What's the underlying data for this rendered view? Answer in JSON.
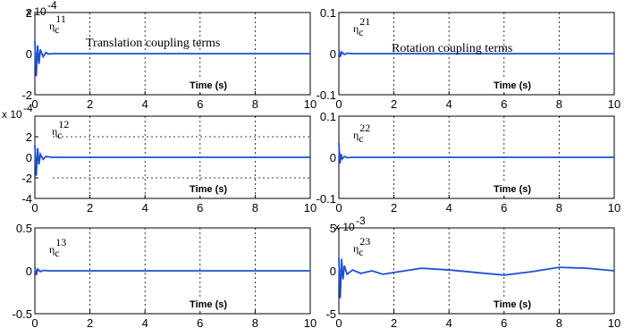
{
  "chart_data": [
    {
      "type": "line",
      "label_main": "η",
      "label_sub": "c",
      "label_sup": "11",
      "exponent_label": "x 10",
      "exponent_power": "-4",
      "annotation": "Translation coupling terms",
      "xlabel": "Time (s)",
      "xlim": [
        0,
        10
      ],
      "ylim": [
        -2,
        2
      ],
      "x_ticks": [
        "0",
        "2",
        "4",
        "6",
        "8",
        "10"
      ],
      "y_ticks": [
        {
          "value": 2,
          "label": "2"
        },
        {
          "value": 0,
          "label": "0"
        },
        {
          "value": -2,
          "label": "-2"
        }
      ],
      "series": [
        {
          "x": [
            0,
            0.05,
            0.1,
            0.15,
            0.2,
            0.3,
            0.4,
            0.5,
            0.7,
            1.0,
            2,
            4,
            6,
            8,
            10
          ],
          "y": [
            0.6,
            -1.1,
            0.4,
            -0.5,
            0.2,
            -0.15,
            0.05,
            -0.02,
            0,
            0,
            0,
            0,
            0,
            0,
            0
          ]
        }
      ]
    },
    {
      "type": "line",
      "label_main": "η",
      "label_sub": "c",
      "label_sup": "21",
      "annotation": "Rotation coupling terms",
      "xlabel": "Time (s)",
      "xlim": [
        0,
        10
      ],
      "ylim": [
        -0.1,
        0.1
      ],
      "x_ticks": [
        "0",
        "2",
        "4",
        "6",
        "8",
        "10"
      ],
      "y_ticks": [
        {
          "value": 0.1,
          "label": "0.1"
        },
        {
          "value": 0,
          "label": "0"
        },
        {
          "value": -0.1,
          "label": "-0.1"
        }
      ],
      "series": [
        {
          "x": [
            0,
            0.05,
            0.1,
            0.2,
            0.3,
            0.5,
            1,
            4,
            6,
            8,
            10
          ],
          "y": [
            0.01,
            -0.008,
            0.004,
            -0.002,
            0.001,
            0,
            0,
            0,
            0,
            0,
            0
          ]
        }
      ]
    },
    {
      "type": "line",
      "label_main": "η",
      "label_sub": "c",
      "label_sup": "12",
      "exponent_label": "x 10",
      "exponent_power": "-4",
      "xlabel": "Time (s)",
      "xlim": [
        0,
        10
      ],
      "ylim": [
        -4,
        4
      ],
      "x_ticks": [
        "0",
        "2",
        "4",
        "6",
        "8",
        "10"
      ],
      "y_ticks": [
        {
          "value": 2,
          "label": "2"
        },
        {
          "value": 0,
          "label": "0"
        },
        {
          "value": -2,
          "label": "-2"
        },
        {
          "value": -4,
          "label": "-4"
        }
      ],
      "series": [
        {
          "x": [
            0,
            0.05,
            0.1,
            0.15,
            0.2,
            0.3,
            0.4,
            0.6,
            1,
            2,
            4,
            6,
            8,
            10
          ],
          "y": [
            1.2,
            -1.8,
            0.9,
            -0.7,
            0.3,
            -0.2,
            0.08,
            0,
            0,
            0,
            0,
            0,
            0,
            0
          ]
        }
      ]
    },
    {
      "type": "line",
      "label_main": "η",
      "label_sub": "c",
      "label_sup": "22",
      "xlabel": "Time (s)",
      "xlim": [
        0,
        10
      ],
      "ylim": [
        -0.1,
        0.1
      ],
      "x_ticks": [
        "0",
        "2",
        "4",
        "6",
        "8",
        "10"
      ],
      "y_ticks": [
        {
          "value": 0.1,
          "label": "0.1"
        },
        {
          "value": 0,
          "label": "0"
        },
        {
          "value": -0.1,
          "label": "-0.1"
        }
      ],
      "series": [
        {
          "x": [
            0,
            0.04,
            0.08,
            0.12,
            0.2,
            0.3,
            0.5,
            1,
            4,
            6,
            8,
            10
          ],
          "y": [
            0.035,
            -0.015,
            0.008,
            -0.004,
            0.002,
            -0.001,
            0,
            0,
            0,
            0,
            0,
            0
          ]
        }
      ]
    },
    {
      "type": "line",
      "label_main": "η",
      "label_sub": "c",
      "label_sup": "13",
      "xlabel": "Time (s)",
      "xlim": [
        0,
        10
      ],
      "ylim": [
        -0.5,
        0.5
      ],
      "x_ticks": [
        "0",
        "2",
        "4",
        "6",
        "8",
        "10"
      ],
      "y_ticks": [
        {
          "value": 0.5,
          "label": "0.5"
        },
        {
          "value": 0,
          "label": "0"
        },
        {
          "value": -0.5,
          "label": "-0.5"
        }
      ],
      "series": [
        {
          "x": [
            0,
            0.05,
            0.1,
            0.2,
            0.3,
            0.5,
            1,
            4,
            6,
            8,
            10
          ],
          "y": [
            0.04,
            -0.05,
            0.02,
            -0.01,
            0.005,
            0,
            0,
            0,
            0,
            0,
            0
          ]
        }
      ]
    },
    {
      "type": "line",
      "label_main": "η",
      "label_sub": "c",
      "label_sup": "23",
      "exponent_label": "x 10",
      "exponent_power": "-3",
      "xlabel": "Time (s)",
      "xlim": [
        0,
        10
      ],
      "ylim": [
        -5,
        5
      ],
      "x_ticks": [
        "0",
        "2",
        "4",
        "6",
        "8",
        "10"
      ],
      "y_ticks": [
        {
          "value": 5,
          "label": "5"
        },
        {
          "value": 0,
          "label": "0"
        },
        {
          "value": -5,
          "label": "-5"
        }
      ],
      "series": [
        {
          "x": [
            0,
            0.05,
            0.1,
            0.15,
            0.2,
            0.3,
            0.5,
            0.8,
            1.2,
            1.6,
            2,
            3,
            4,
            5,
            6,
            7,
            8,
            9,
            10
          ],
          "y": [
            1.5,
            -3.2,
            1.4,
            -1.0,
            0.6,
            -0.4,
            0.1,
            -0.3,
            0.0,
            -0.4,
            -0.2,
            0.3,
            0.1,
            -0.2,
            -0.5,
            -0.1,
            0.4,
            0.3,
            0.0
          ]
        }
      ]
    }
  ],
  "colors": {
    "line": "#1f4fd1",
    "axis": "#000000",
    "grid": "#000000",
    "background": "#ffffff"
  }
}
